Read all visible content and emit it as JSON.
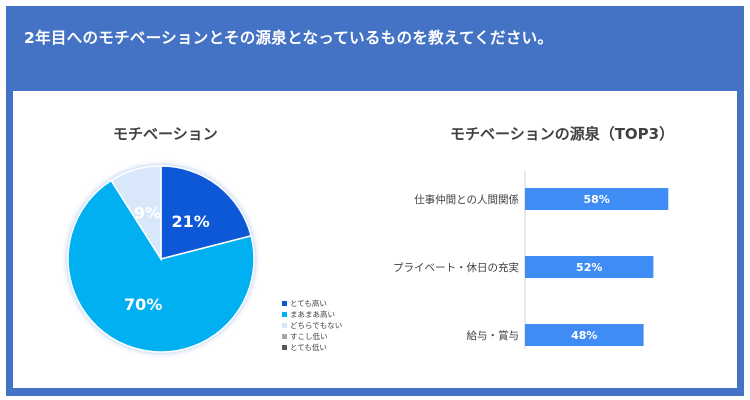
{
  "header": {
    "title": "2年目へのモチベーションとその源泉となっているものを教えてください。"
  },
  "colors": {
    "header_bg": "#4472c4",
    "pie_very_high": "#0b58d6",
    "pie_high": "#00b0f0",
    "pie_neutral": "#d9e7fb",
    "pie_low": "#a6a6a6",
    "pie_very_low": "#595959",
    "bar": "#3f8cf4"
  },
  "chart_data": [
    {
      "type": "pie",
      "title": "モチベーション",
      "slices": [
        {
          "label": "とても高い",
          "value": 21,
          "display": "21%",
          "color": "#0b58d6"
        },
        {
          "label": "まあまあ高い",
          "value": 70,
          "display": "70%",
          "color": "#00b0f0"
        },
        {
          "label": "どちらでもない",
          "value": 9,
          "display": "9%",
          "color": "#d9e7fb"
        },
        {
          "label": "すこし低い",
          "value": 0,
          "display": "",
          "color": "#a6a6a6"
        },
        {
          "label": "とても低い",
          "value": 0,
          "display": "",
          "color": "#595959"
        }
      ],
      "legend_position": "right"
    },
    {
      "type": "bar",
      "orientation": "horizontal",
      "title": "モチベーションの源泉（TOP3）",
      "categories": [
        "仕事仲間との人間関係",
        "プライベート・休日の充実",
        "給与・賞与"
      ],
      "values": [
        58,
        52,
        48
      ],
      "display": [
        "58%",
        "52%",
        "48%"
      ],
      "xlim": [
        0,
        100
      ]
    }
  ]
}
